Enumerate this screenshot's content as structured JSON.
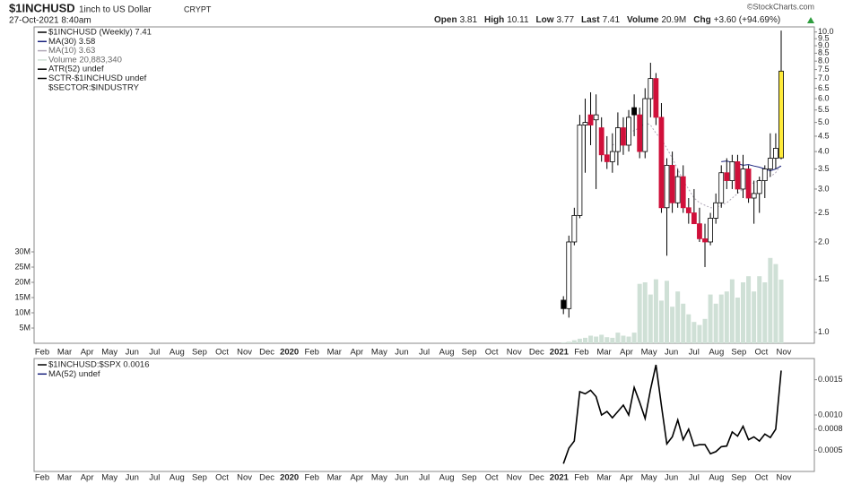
{
  "header": {
    "symbol": "$1INCHUSD",
    "name": "1inch to US Dollar",
    "exchange": "CRYPT",
    "date": "27-Oct-2021 8:40am",
    "credit": "©StockCharts.com",
    "quote": [
      {
        "label": "Open",
        "value": "3.81"
      },
      {
        "label": "High",
        "value": "10.11"
      },
      {
        "label": "Low",
        "value": "3.77"
      },
      {
        "label": "Last",
        "value": "7.41"
      },
      {
        "label": "Volume",
        "value": "20.9M"
      },
      {
        "label": "Chg",
        "value": "+3.60 (+94.69%)"
      }
    ]
  },
  "chart_data": [
    {
      "type": "candlestick",
      "log_scale": true,
      "legend": [
        "$1INCHUSD (Weekly) 7.41",
        "MA(30) 3.58",
        "MA(10) 3.63",
        "Volume 20,883,340",
        "ATR(52) undef",
        "SCTR-$1INCHUSD undef",
        "$SECTOR:$INDUSTRY"
      ],
      "x_labels": [
        "Feb",
        "Mar",
        "Apr",
        "May",
        "Jun",
        "Jul",
        "Aug",
        "Sep",
        "Oct",
        "Nov",
        "Dec",
        "2020",
        "Feb",
        "Mar",
        "Apr",
        "May",
        "Jun",
        "Jul",
        "Aug",
        "Sep",
        "Oct",
        "Nov",
        "Dec",
        "2021",
        "Feb",
        "Mar",
        "Apr",
        "May",
        "Jun",
        "Jul",
        "Aug",
        "Sep",
        "Oct",
        "Nov"
      ],
      "open": [
        1.28,
        1.2,
        2.0,
        2.45,
        4.9,
        5.3,
        5.1,
        4.8,
        3.9,
        3.7,
        4.0,
        4.8,
        4.2,
        5.6,
        5.3,
        4.0,
        6.0,
        7.0,
        5.2,
        2.6,
        3.6,
        2.7,
        3.3,
        2.6,
        2.5,
        2.3,
        2.05,
        2.0,
        2.4,
        2.7,
        3.4,
        3.2,
        3.7,
        3.0,
        3.5,
        2.8,
        2.9,
        3.2,
        3.5,
        3.8,
        3.81
      ],
      "high": [
        1.32,
        2.1,
        2.6,
        5.3,
        6.0,
        6.3,
        6.2,
        5.2,
        4.5,
        4.6,
        5.4,
        5.2,
        5.5,
        6.2,
        5.6,
        6.5,
        7.9,
        7.3,
        5.8,
        3.8,
        4.0,
        3.5,
        3.6,
        2.8,
        3.0,
        2.6,
        2.3,
        2.5,
        2.9,
        3.6,
        3.8,
        3.9,
        3.9,
        3.9,
        3.6,
        3.2,
        3.3,
        3.6,
        4.6,
        4.6,
        10.11
      ],
      "low": [
        1.15,
        1.12,
        1.95,
        2.4,
        3.4,
        4.2,
        3.0,
        3.7,
        3.5,
        3.4,
        3.6,
        3.9,
        4.0,
        4.5,
        3.8,
        3.8,
        5.2,
        4.9,
        2.5,
        1.8,
        2.5,
        2.6,
        2.5,
        2.3,
        2.3,
        2.0,
        1.65,
        1.95,
        2.3,
        2.6,
        3.0,
        3.0,
        2.9,
        2.8,
        2.7,
        2.3,
        2.5,
        2.8,
        3.3,
        3.5,
        3.77
      ],
      "close": [
        1.2,
        2.0,
        2.45,
        4.9,
        5.0,
        4.9,
        5.3,
        3.9,
        3.7,
        4.0,
        4.8,
        4.2,
        5.2,
        5.3,
        4.0,
        6.0,
        7.0,
        5.2,
        2.6,
        3.6,
        2.7,
        3.3,
        2.6,
        2.5,
        2.3,
        2.05,
        2.0,
        2.4,
        2.7,
        3.4,
        3.2,
        3.7,
        3.0,
        3.5,
        2.8,
        2.9,
        3.2,
        3.5,
        3.8,
        4.1,
        7.41
      ],
      "up_color": "#000000",
      "down_color": "#d0103a",
      "highlight_color": "#ffeb3b",
      "ma30": {
        "color": "#1a237e",
        "values": [
          null,
          null,
          null,
          null,
          null,
          null,
          null,
          null,
          null,
          null,
          null,
          null,
          null,
          null,
          null,
          null,
          null,
          null,
          null,
          null,
          null,
          null,
          null,
          null,
          null,
          null,
          null,
          null,
          null,
          3.7,
          3.72,
          3.68,
          3.65,
          3.6,
          3.62,
          3.58,
          3.55,
          3.5,
          3.45,
          3.5,
          3.58
        ]
      },
      "ma10": {
        "color": "#b0a8b8",
        "values": [
          null,
          null,
          null,
          null,
          null,
          null,
          null,
          null,
          null,
          4.2,
          4.3,
          4.4,
          4.6,
          4.7,
          4.8,
          5.0,
          4.9,
          4.6,
          4.4,
          4.1,
          3.8,
          3.5,
          3.2,
          3.0,
          2.8,
          2.7,
          2.65,
          2.6,
          2.6,
          2.65,
          2.7,
          2.8,
          2.9,
          3.0,
          3.1,
          3.15,
          3.2,
          3.25,
          3.3,
          3.4,
          3.63
        ]
      },
      "volume": {
        "color": "#cfe0d6",
        "values": [
          0.3,
          0.5,
          1,
          1.5,
          1.8,
          2.5,
          2.2,
          2.8,
          2,
          1.8,
          3.5,
          2.5,
          2.2,
          3.5,
          19.5,
          20,
          16,
          21,
          14,
          20.5,
          12,
          17,
          13,
          9.5,
          7,
          6,
          8,
          16,
          13,
          16,
          17,
          21,
          15,
          20,
          22,
          17,
          22,
          20,
          28,
          26,
          20.9
        ],
        "ylim": [
          0,
          30
        ],
        "yticks": [
          {
            "value": 5,
            "label": "5M"
          },
          {
            "value": 10,
            "label": "10M"
          },
          {
            "value": 15,
            "label": "15M"
          },
          {
            "value": 20,
            "label": "20M"
          },
          {
            "value": 25,
            "label": "25M"
          },
          {
            "value": 30,
            "label": "30M"
          }
        ]
      },
      "ylim": [
        0.92,
        10.4
      ],
      "yticks": [
        {
          "value": 1,
          "label": "1.0"
        },
        1.5,
        {
          "value": 2,
          "label": "2.0"
        },
        2.5,
        {
          "value": 3,
          "label": "3.0"
        },
        3.5,
        {
          "value": 4,
          "label": "4.0"
        },
        4.5,
        {
          "value": 5,
          "label": "5.0"
        },
        5.5,
        {
          "value": 6,
          "label": "6.0"
        },
        6.5,
        {
          "value": 7,
          "label": "7.0"
        },
        7.5,
        {
          "value": 8,
          "label": "8.0"
        },
        8.5,
        {
          "value": 9,
          "label": "9.0"
        },
        9.5,
        {
          "value": 10,
          "label": "10.0"
        }
      ]
    },
    {
      "type": "line",
      "legend": [
        "$1INCHUSD:$SPX 0.0016",
        "MA(52) undef"
      ],
      "color": "#000000",
      "values": [
        0.00031,
        0.00053,
        0.00063,
        0.00133,
        0.0013,
        0.00135,
        0.00126,
        0.001,
        0.00105,
        0.00096,
        0.00105,
        0.00114,
        0.001,
        0.00139,
        0.00118,
        0.00095,
        0.00136,
        0.00171,
        0.00113,
        0.00059,
        0.00069,
        0.00093,
        0.00065,
        0.0008,
        0.00056,
        0.00058,
        0.00058,
        0.00045,
        0.00048,
        0.00055,
        0.00056,
        0.00076,
        0.0007,
        0.00084,
        0.00065,
        0.00069,
        0.00063,
        0.00073,
        0.00068,
        0.0008,
        0.00163
      ],
      "ylim": [
        0.0002,
        0.0018
      ],
      "yticks": [
        0.0005,
        0.0008,
        {
          "value": 0.001,
          "label": "0.0010"
        },
        0.0015
      ]
    }
  ]
}
